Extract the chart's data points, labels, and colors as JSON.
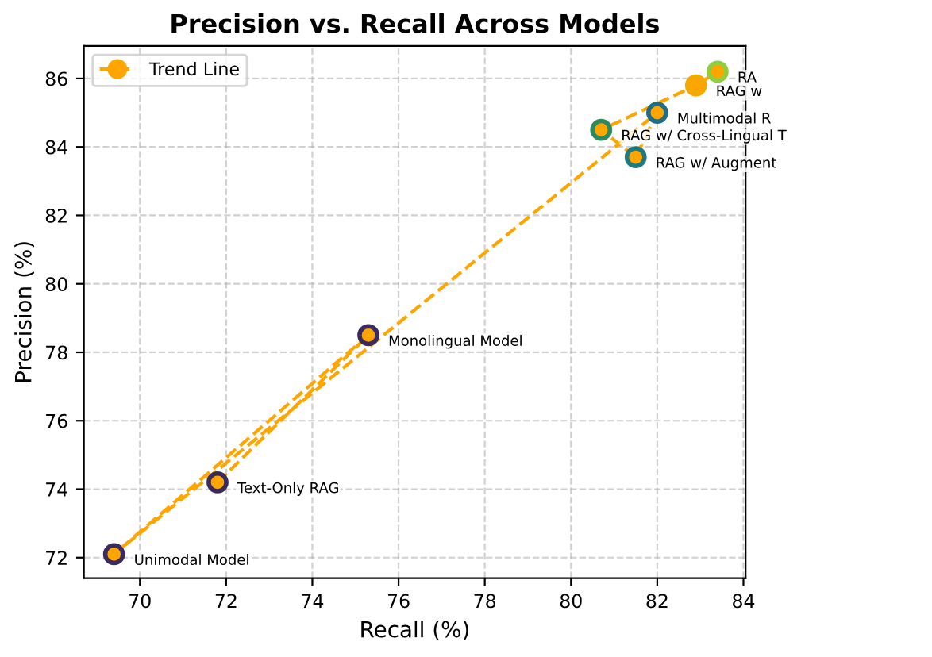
{
  "chart_data": {
    "type": "scatter",
    "title": "Precision vs. Recall Across Models",
    "xlabel": "Recall (%)",
    "ylabel": "Precision (%)",
    "xlim": [
      68.7,
      84.05
    ],
    "ylim": [
      71.4,
      86.95
    ],
    "xticks": [
      70,
      72,
      74,
      76,
      78,
      80,
      82,
      84
    ],
    "yticks": [
      72,
      74,
      76,
      78,
      80,
      82,
      84,
      86
    ],
    "grid": true,
    "legend": "top left",
    "series": [
      {
        "x": [
          69.4,
          71.8,
          75.3,
          80.7,
          81.5,
          82.0,
          82.9,
          83.4
        ],
        "values": [
          72.1,
          74.2,
          78.5,
          84.5,
          83.7,
          85.0,
          85.8,
          86.2
        ],
        "colors": [
          "#3b2a5e",
          "#3b2a5e",
          "#3b2a5e",
          "#2e8a5c",
          "#1f7a80",
          "#226d86",
          "#f5a800",
          "#8fcf3f"
        ],
        "marker": "circle"
      },
      {
        "type": "line",
        "name": "Trend Line",
        "color": "#ffa500",
        "line_style": "dashed",
        "marker": "circle",
        "x": [
          71.8,
          75.3,
          69.4,
          82.0,
          81.5,
          80.7,
          82.9,
          83.4
        ],
        "values": [
          74.2,
          78.5,
          72.1,
          85.0,
          83.7,
          84.5,
          85.8,
          86.2
        ]
      }
    ],
    "annotations": [
      {
        "text": "Unimodal Model",
        "x": 69.4,
        "y": 72.1
      },
      {
        "text": "Text-Only RAG",
        "x": 71.8,
        "y": 74.2
      },
      {
        "text": "Monolingual Model",
        "x": 75.3,
        "y": 78.5
      },
      {
        "text": "RAG w/ Cross-Lingual T",
        "x": 80.7,
        "y": 84.5
      },
      {
        "text": "RAG w/ Augment",
        "x": 81.5,
        "y": 83.7
      },
      {
        "text": "Multimodal R",
        "x": 82.0,
        "y": 85.0
      },
      {
        "text": "RAG w",
        "x": 82.9,
        "y": 85.8
      },
      {
        "text": "RA",
        "x": 83.4,
        "y": 86.2
      }
    ]
  }
}
